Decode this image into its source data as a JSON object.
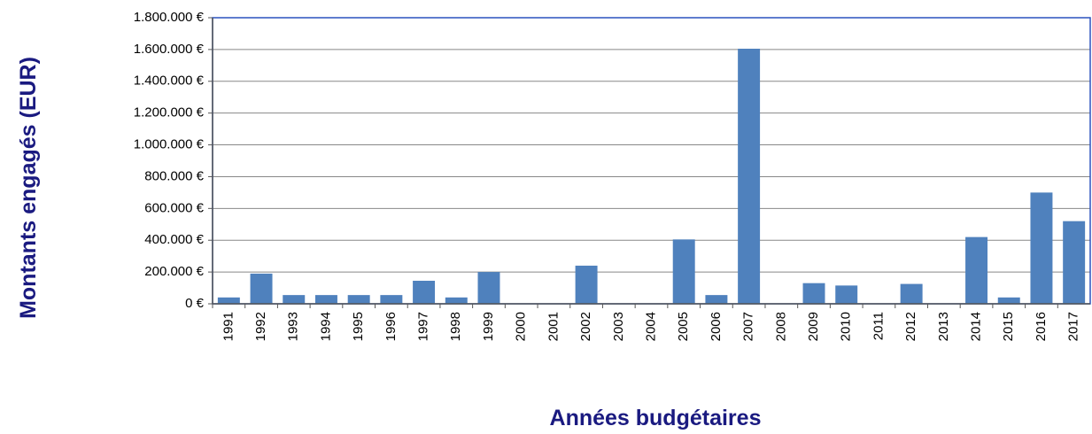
{
  "chart_data": {
    "type": "bar",
    "y_label": "Montants engagés (EUR)",
    "x_label": "Années budgétaires",
    "categories": [
      "1991",
      "1992",
      "1993",
      "1994",
      "1995",
      "1996",
      "1997",
      "1998",
      "1999",
      "2000",
      "2001",
      "2002",
      "2003",
      "2004",
      "2005",
      "2006",
      "2007",
      "2008",
      "2009",
      "2010",
      "2011",
      "2012",
      "2013",
      "2014",
      "2015",
      "2016",
      "2017"
    ],
    "values": [
      40000,
      190000,
      55000,
      55000,
      55000,
      55000,
      145000,
      40000,
      200000,
      0,
      0,
      240000,
      0,
      0,
      405000,
      55000,
      1605000,
      0,
      130000,
      115000,
      0,
      125000,
      0,
      420000,
      40000,
      700000,
      520000
    ],
    "color": "#4f81bd",
    "ylim": [
      0,
      1800000
    ],
    "yticks": [
      {
        "value": 0,
        "label": "0 €"
      },
      {
        "value": 200000,
        "label": "200.000 €"
      },
      {
        "value": 400000,
        "label": "400.000 €"
      },
      {
        "value": 600000,
        "label": "600.000 €"
      },
      {
        "value": 800000,
        "label": "800.000 €"
      },
      {
        "value": 1000000,
        "label": "1.000.000 €"
      },
      {
        "value": 1200000,
        "label": "1.200.000 €"
      },
      {
        "value": 1400000,
        "label": "1.400.000 €"
      },
      {
        "value": 1600000,
        "label": "1.600.000 €"
      },
      {
        "value": 1800000,
        "label": "1.800.000 €"
      }
    ],
    "grid": true
  }
}
